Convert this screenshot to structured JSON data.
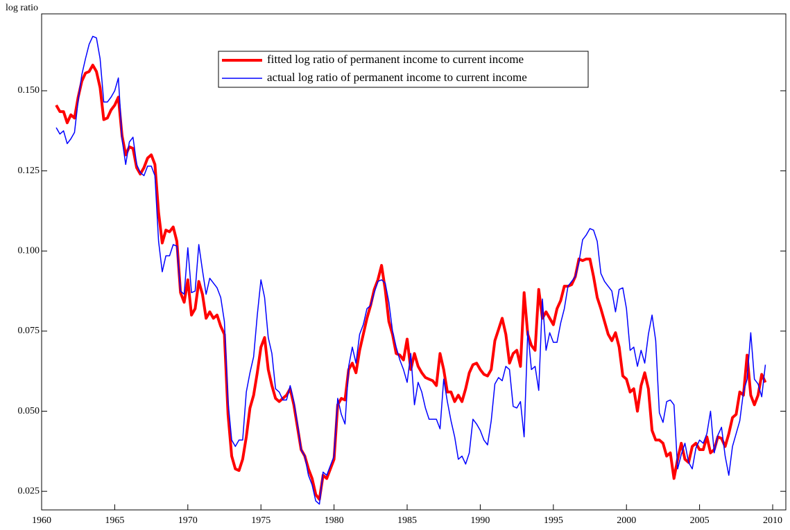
{
  "chart_data": {
    "type": "line",
    "y_label": "log ratio",
    "x": [
      1961,
      1961.25,
      1961.5,
      1961.75,
      1962,
      1962.25,
      1962.5,
      1962.75,
      1963,
      1963.25,
      1963.5,
      1963.75,
      1964,
      1964.25,
      1964.5,
      1964.75,
      1965,
      1965.25,
      1965.5,
      1965.75,
      1966,
      1966.25,
      1966.5,
      1966.75,
      1967,
      1967.25,
      1967.5,
      1967.75,
      1968,
      1968.25,
      1968.5,
      1968.75,
      1969,
      1969.25,
      1969.5,
      1969.75,
      1970,
      1970.25,
      1970.5,
      1970.75,
      1971,
      1971.25,
      1971.5,
      1971.75,
      1972,
      1972.25,
      1972.5,
      1972.75,
      1973,
      1973.25,
      1973.5,
      1973.75,
      1974,
      1974.25,
      1974.5,
      1974.75,
      1975,
      1975.25,
      1975.5,
      1975.75,
      1976,
      1976.25,
      1976.5,
      1976.75,
      1977,
      1977.25,
      1977.5,
      1977.75,
      1978,
      1978.25,
      1978.5,
      1978.75,
      1979,
      1979.25,
      1979.5,
      1979.75,
      1980,
      1980.25,
      1980.5,
      1980.75,
      1981,
      1981.25,
      1981.5,
      1981.75,
      1982,
      1982.25,
      1982.5,
      1982.75,
      1983,
      1983.25,
      1983.5,
      1983.75,
      1984,
      1984.25,
      1984.5,
      1984.75,
      1985,
      1985.25,
      1985.5,
      1985.75,
      1986,
      1986.25,
      1986.5,
      1986.75,
      1987,
      1987.25,
      1987.5,
      1987.75,
      1988,
      1988.25,
      1988.5,
      1988.75,
      1989,
      1989.25,
      1989.5,
      1989.75,
      1990,
      1990.25,
      1990.5,
      1990.75,
      1991,
      1991.25,
      1991.5,
      1991.75,
      1992,
      1992.25,
      1992.5,
      1992.75,
      1993,
      1993.25,
      1993.5,
      1993.75,
      1994,
      1994.25,
      1994.5,
      1994.75,
      1995,
      1995.25,
      1995.5,
      1995.75,
      1996,
      1996.25,
      1996.5,
      1996.75,
      1997,
      1997.25,
      1997.5,
      1997.75,
      1998,
      1998.25,
      1998.5,
      1998.75,
      1999,
      1999.25,
      1999.5,
      1999.75,
      2000,
      2000.25,
      2000.5,
      2000.75,
      2001,
      2001.25,
      2001.5,
      2001.75,
      2002,
      2002.25,
      2002.5,
      2002.75,
      2003,
      2003.25,
      2003.5,
      2003.75,
      2004,
      2004.25,
      2004.5,
      2004.75,
      2005,
      2005.25,
      2005.5,
      2005.75,
      2006,
      2006.25,
      2006.5,
      2006.75,
      2007,
      2007.25,
      2007.5,
      2007.75,
      2008,
      2008.25,
      2008.5,
      2008.75,
      2009,
      2009.25,
      2009.5
    ],
    "series": [
      {
        "name": "fitted log ratio of permanent income to current income",
        "color": "#ff0000",
        "width": 4,
        "values": [
          0.1455,
          0.1435,
          0.1435,
          0.14,
          0.1425,
          0.1415,
          0.148,
          0.153,
          0.1555,
          0.156,
          0.158,
          0.156,
          0.151,
          0.141,
          0.1415,
          0.144,
          0.1455,
          0.148,
          0.136,
          0.13,
          0.1325,
          0.132,
          0.126,
          0.124,
          0.126,
          0.129,
          0.13,
          0.127,
          0.112,
          0.1025,
          0.1065,
          0.106,
          0.1075,
          0.103,
          0.087,
          0.084,
          0.091,
          0.08,
          0.082,
          0.0905,
          0.0865,
          0.079,
          0.081,
          0.079,
          0.08,
          0.0765,
          0.074,
          0.049,
          0.036,
          0.032,
          0.0315,
          0.035,
          0.042,
          0.051,
          0.055,
          0.062,
          0.07,
          0.073,
          0.063,
          0.058,
          0.054,
          0.053,
          0.054,
          0.055,
          0.057,
          0.052,
          0.045,
          0.038,
          0.036,
          0.032,
          0.029,
          0.024,
          0.0225,
          0.03,
          0.029,
          0.032,
          0.035,
          0.052,
          0.054,
          0.0535,
          0.063,
          0.065,
          0.062,
          0.069,
          0.074,
          0.079,
          0.083,
          0.088,
          0.091,
          0.0955,
          0.088,
          0.078,
          0.074,
          0.068,
          0.0675,
          0.066,
          0.0725,
          0.063,
          0.068,
          0.064,
          0.062,
          0.0605,
          0.06,
          0.0595,
          0.058,
          0.068,
          0.063,
          0.056,
          0.056,
          0.053,
          0.055,
          0.053,
          0.057,
          0.062,
          0.0645,
          0.065,
          0.063,
          0.0615,
          0.061,
          0.063,
          0.072,
          0.0755,
          0.079,
          0.074,
          0.065,
          0.068,
          0.069,
          0.064,
          0.087,
          0.074,
          0.0705,
          0.069,
          0.088,
          0.079,
          0.081,
          0.079,
          0.077,
          0.082,
          0.0845,
          0.089,
          0.089,
          0.0895,
          0.092,
          0.0975,
          0.097,
          0.0975,
          0.0975,
          0.092,
          0.0855,
          0.082,
          0.078,
          0.074,
          0.072,
          0.0745,
          0.07,
          0.061,
          0.06,
          0.056,
          0.057,
          0.05,
          0.058,
          0.062,
          0.057,
          0.044,
          0.041,
          0.041,
          0.04,
          0.036,
          0.037,
          0.029,
          0.035,
          0.04,
          0.035,
          0.034,
          0.039,
          0.04,
          0.038,
          0.038,
          0.042,
          0.037,
          0.038,
          0.042,
          0.0415,
          0.039,
          0.043,
          0.048,
          0.049,
          0.056,
          0.055,
          0.0675,
          0.055,
          0.052,
          0.055,
          0.0615,
          0.059
        ]
      },
      {
        "name": "actual log ratio of permanent income to current income",
        "color": "#0000ff",
        "width": 1.5,
        "values": [
          0.1385,
          0.1365,
          0.1375,
          0.1335,
          0.135,
          0.137,
          0.147,
          0.155,
          0.16,
          0.1645,
          0.167,
          0.1665,
          0.16,
          0.1465,
          0.1465,
          0.148,
          0.15,
          0.154,
          0.135,
          0.127,
          0.134,
          0.1355,
          0.127,
          0.1245,
          0.1235,
          0.1265,
          0.1265,
          0.1235,
          0.103,
          0.0935,
          0.0985,
          0.0985,
          0.102,
          0.1015,
          0.0875,
          0.0865,
          0.101,
          0.087,
          0.0875,
          0.102,
          0.094,
          0.0865,
          0.0915,
          0.09,
          0.0885,
          0.0855,
          0.078,
          0.053,
          0.041,
          0.039,
          0.041,
          0.041,
          0.056,
          0.062,
          0.067,
          0.08,
          0.091,
          0.0855,
          0.073,
          0.068,
          0.057,
          0.056,
          0.0535,
          0.0535,
          0.058,
          0.053,
          0.046,
          0.038,
          0.036,
          0.03,
          0.027,
          0.022,
          0.021,
          0.031,
          0.03,
          0.033,
          0.036,
          0.054,
          0.049,
          0.046,
          0.064,
          0.07,
          0.065,
          0.074,
          0.077,
          0.082,
          0.083,
          0.087,
          0.0905,
          0.091,
          0.09,
          0.084,
          0.075,
          0.07,
          0.066,
          0.063,
          0.059,
          0.068,
          0.052,
          0.059,
          0.056,
          0.051,
          0.0475,
          0.0475,
          0.0475,
          0.0445,
          0.06,
          0.053,
          0.047,
          0.042,
          0.035,
          0.036,
          0.0335,
          0.037,
          0.0475,
          0.046,
          0.044,
          0.041,
          0.0395,
          0.047,
          0.0585,
          0.0605,
          0.0595,
          0.064,
          0.063,
          0.0515,
          0.051,
          0.053,
          0.042,
          0.075,
          0.063,
          0.064,
          0.0565,
          0.085,
          0.069,
          0.0745,
          0.0715,
          0.0715,
          0.0775,
          0.082,
          0.089,
          0.0905,
          0.092,
          0.0965,
          0.1035,
          0.105,
          0.107,
          0.1065,
          0.103,
          0.093,
          0.0905,
          0.089,
          0.0875,
          0.081,
          0.088,
          0.0885,
          0.082,
          0.069,
          0.07,
          0.064,
          0.069,
          0.065,
          0.074,
          0.08,
          0.072,
          0.0495,
          0.0465,
          0.053,
          0.0535,
          0.052,
          0.032,
          0.0365,
          0.04,
          0.034,
          0.032,
          0.0385,
          0.041,
          0.04,
          0.043,
          0.05,
          0.037,
          0.0425,
          0.045,
          0.036,
          0.03,
          0.039,
          0.043,
          0.047,
          0.056,
          0.06,
          0.0745,
          0.06,
          0.0585,
          0.0545,
          0.0645
        ]
      }
    ],
    "xlim": [
      1960,
      2010.9
    ],
    "xticks": [
      1960,
      1965,
      1970,
      1975,
      1980,
      1985,
      1990,
      1995,
      2000,
      2005,
      2010
    ],
    "ylim": [
      0.0192,
      0.174
    ],
    "yticks": [
      0.025,
      {
        "value": 0.05,
        "label": "0.050"
      },
      0.075,
      {
        "value": 0.1,
        "label": "0.100"
      },
      0.125,
      {
        "value": 0.15,
        "label": "0.150"
      }
    ],
    "grid": false,
    "legend": "top"
  }
}
